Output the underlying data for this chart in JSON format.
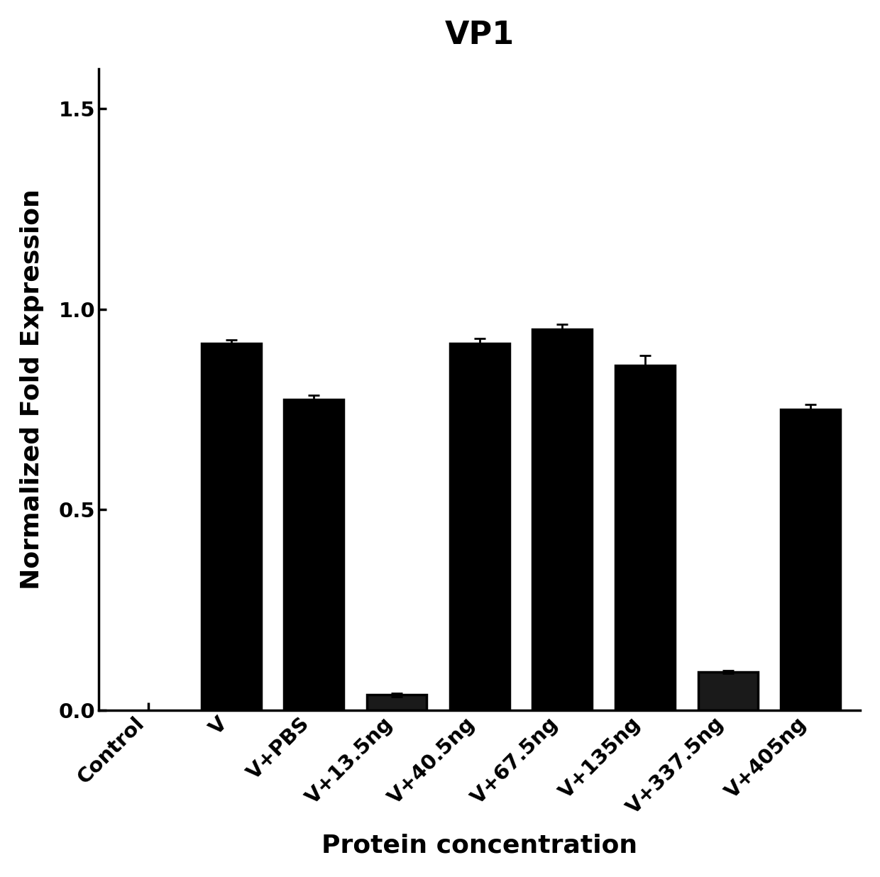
{
  "title": "VP1",
  "xlabel": "Protein concentration",
  "ylabel": "Normalized Fold Expression",
  "categories": [
    "Control",
    "V",
    "V+PBS",
    "V+13.5ng",
    "V+40.5ng",
    "V+67.5ng",
    "V+135ng",
    "V+337.5ng",
    "V+405ng"
  ],
  "values": [
    0.0,
    0.915,
    0.775,
    0.038,
    0.915,
    0.95,
    0.86,
    0.095,
    0.75
  ],
  "errors": [
    0.0,
    0.008,
    0.01,
    0.004,
    0.012,
    0.012,
    0.025,
    0.003,
    0.013
  ],
  "solid_bars": [
    3,
    7
  ],
  "ylim": [
    0.0,
    1.6
  ],
  "yticks": [
    0.0,
    0.5,
    1.0,
    1.5
  ],
  "title_fontsize": 32,
  "label_fontsize": 26,
  "tick_fontsize": 21,
  "background_color": "#ffffff"
}
